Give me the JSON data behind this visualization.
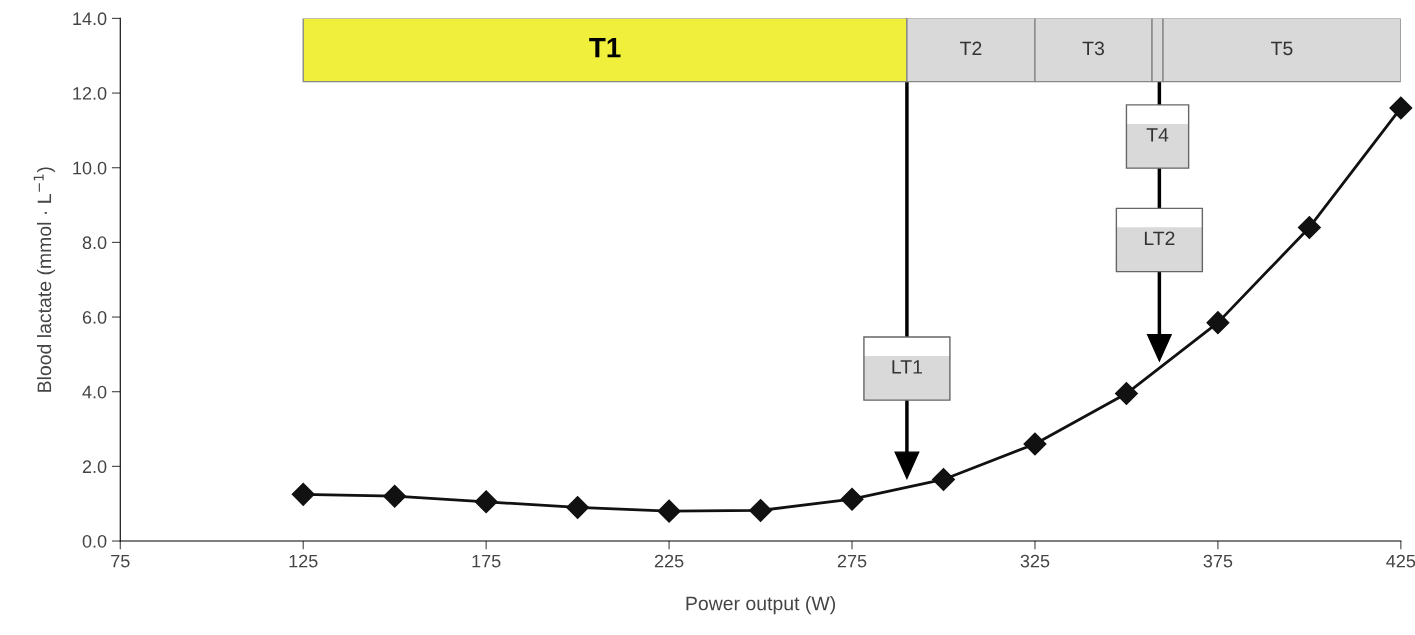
{
  "chart_data": {
    "type": "line",
    "xlabel": "Power output (W)",
    "ylabel": "Blood lactate (mmol · L$^{−1}$)",
    "x": [
      125,
      150,
      175,
      200,
      225,
      250,
      275,
      300,
      325,
      350,
      375,
      400,
      425
    ],
    "series": [
      {
        "color": "#111111",
        "values": [
          1.25,
          1.2,
          1.05,
          0.9,
          0.8,
          0.82,
          1.12,
          1.65,
          2.6,
          3.95,
          5.85,
          8.4,
          11.6
        ]
      }
    ],
    "marker": "diamond",
    "line_style": "solid",
    "grid": false,
    "legend": false,
    "xlim": [
      75,
      425
    ],
    "xticks": [
      75,
      125,
      175,
      225,
      275,
      325,
      375,
      425
    ],
    "ylim": [
      0,
      14
    ],
    "yticks": [
      {
        "value": 0,
        "label": "0.0"
      },
      {
        "value": 2,
        "label": "2.0"
      },
      {
        "value": 4,
        "label": "4.0"
      },
      {
        "value": 6,
        "label": "6.0"
      },
      {
        "value": 8,
        "label": "8.0"
      },
      {
        "value": 10,
        "label": "10.0"
      },
      {
        "value": 12,
        "label": "12.0"
      },
      {
        "value": 14,
        "label": "14.0"
      }
    ],
    "bands": [
      {
        "axis": "x",
        "from": 125,
        "to": 290,
        "label": "T1",
        "color": "#f0f03c"
      },
      {
        "axis": "x",
        "from": 290,
        "to": 325,
        "label": "T2",
        "color": "#d9d9d9"
      },
      {
        "axis": "x",
        "from": 325,
        "to": 357,
        "label": "T3",
        "color": "#d9d9d9"
      },
      {
        "axis": "x",
        "from": 357,
        "to": 360,
        "label": "T4",
        "color": "#d9d9d9"
      },
      {
        "axis": "x",
        "from": 360,
        "to": 425,
        "label": "T5",
        "color": "#d9d9d9"
      }
    ],
    "ref_lines": [
      {
        "axis": "x",
        "value": 290,
        "label": "LT1",
        "color": "#000000"
      },
      {
        "axis": "x",
        "value": 359,
        "label": "LT2",
        "color": "#000000"
      }
    ]
  }
}
